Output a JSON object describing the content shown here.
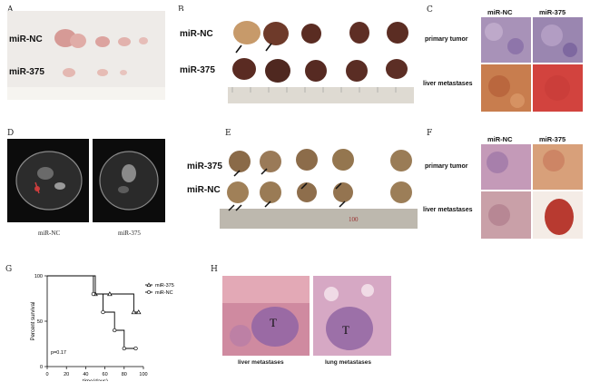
{
  "panels": {
    "A": {
      "letter": "A",
      "row1": "miR-NC",
      "row2": "miR-375"
    },
    "B": {
      "letter": "B",
      "row1": "miR-NC",
      "row2": "miR-375"
    },
    "C": {
      "letter": "C",
      "col1": "miR-NC",
      "col2": "miR-375",
      "row1": "primary tumor",
      "row2": "liver metastases"
    },
    "D": {
      "letter": "D",
      "cap1": "miR-NC",
      "cap2": "miR-375"
    },
    "E": {
      "letter": "E",
      "row1": "miR-375",
      "row2": "miR-NC",
      "ruler_mark": "100"
    },
    "F": {
      "letter": "F",
      "col1": "miR-NC",
      "col2": "miR-375",
      "row1": "primary tumor",
      "row2": "liver metastases"
    },
    "G": {
      "letter": "G"
    },
    "H": {
      "letter": "H",
      "cap1": "liver  metastases",
      "cap2": "lung  metastases",
      "t1": "T",
      "t2": "T"
    }
  },
  "chart_data": {
    "type": "line",
    "subtype": "kaplan-meier step",
    "xlabel": "time(days)",
    "ylabel": "Percent survival",
    "xlim": [
      0,
      100
    ],
    "ylim": [
      0,
      100
    ],
    "xticks": [
      "0",
      "20",
      "40",
      "60",
      "80",
      "100"
    ],
    "yticks": [
      "0",
      "50",
      "100"
    ],
    "annotation": "p=0.17",
    "legend_position": "right",
    "series": [
      {
        "name": "miR-375",
        "marker": "triangle",
        "x": [
          0,
          50,
          65,
          90,
          95
        ],
        "y": [
          100,
          80,
          80,
          60,
          60
        ]
      },
      {
        "name": "miR-NC",
        "marker": "circle",
        "x": [
          0,
          48,
          58,
          70,
          80,
          92
        ],
        "y": [
          100,
          80,
          60,
          40,
          20,
          20
        ]
      }
    ]
  }
}
